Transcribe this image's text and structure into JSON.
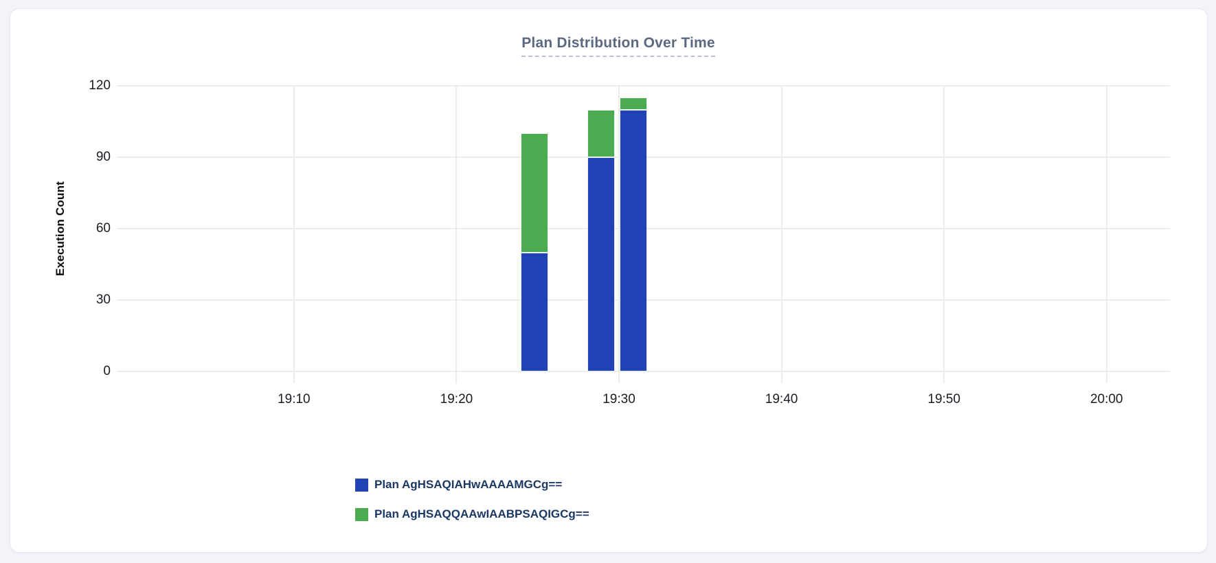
{
  "page": {
    "background": "#f2f4f9"
  },
  "card": {
    "background": "#ffffff",
    "border_color": "#e4e8ef"
  },
  "chart_data": {
    "type": "bar",
    "stacked": true,
    "title": "Plan Distribution Over Time",
    "xlabel": "",
    "ylabel": "Execution Count",
    "ylim": [
      0,
      120
    ],
    "y_ticks": [
      0,
      30,
      60,
      90,
      120
    ],
    "x_ticks": [
      {
        "label": "19:10",
        "minute": 1150
      },
      {
        "label": "19:20",
        "minute": 1160
      },
      {
        "label": "19:30",
        "minute": 1170
      },
      {
        "label": "19:40",
        "minute": 1180
      },
      {
        "label": "19:50",
        "minute": 1190
      },
      {
        "label": "20:00",
        "minute": 1200
      }
    ],
    "x_domain_minutes": [
      1139.1,
      1203.9
    ],
    "x": [
      "19:25",
      "19:29",
      "19:31"
    ],
    "bar_center_minutes": [
      1164.8,
      1168.9,
      1170.9
    ],
    "bar_width_minutes": 1.69,
    "series": [
      {
        "name": "Plan AgHSAQIAHwAAAAMGCg==",
        "color": "#2243b6",
        "values": [
          50,
          90,
          110
        ]
      },
      {
        "name": "Plan AgHSAQQAAwIAABPSAQIGCg==",
        "color": "#4cab50",
        "values": [
          50,
          20,
          5
        ]
      }
    ],
    "grid": true,
    "legend_position": "bottom-left"
  },
  "colors": {
    "title_text": "#5a6880",
    "title_underline": "#b9c3d3",
    "tick_text": "#191c22",
    "axis_label_text": "#0c0d0f",
    "legend_text": "#1b3763",
    "gridline": "#ececec",
    "bar_border": "#fafbfd"
  }
}
